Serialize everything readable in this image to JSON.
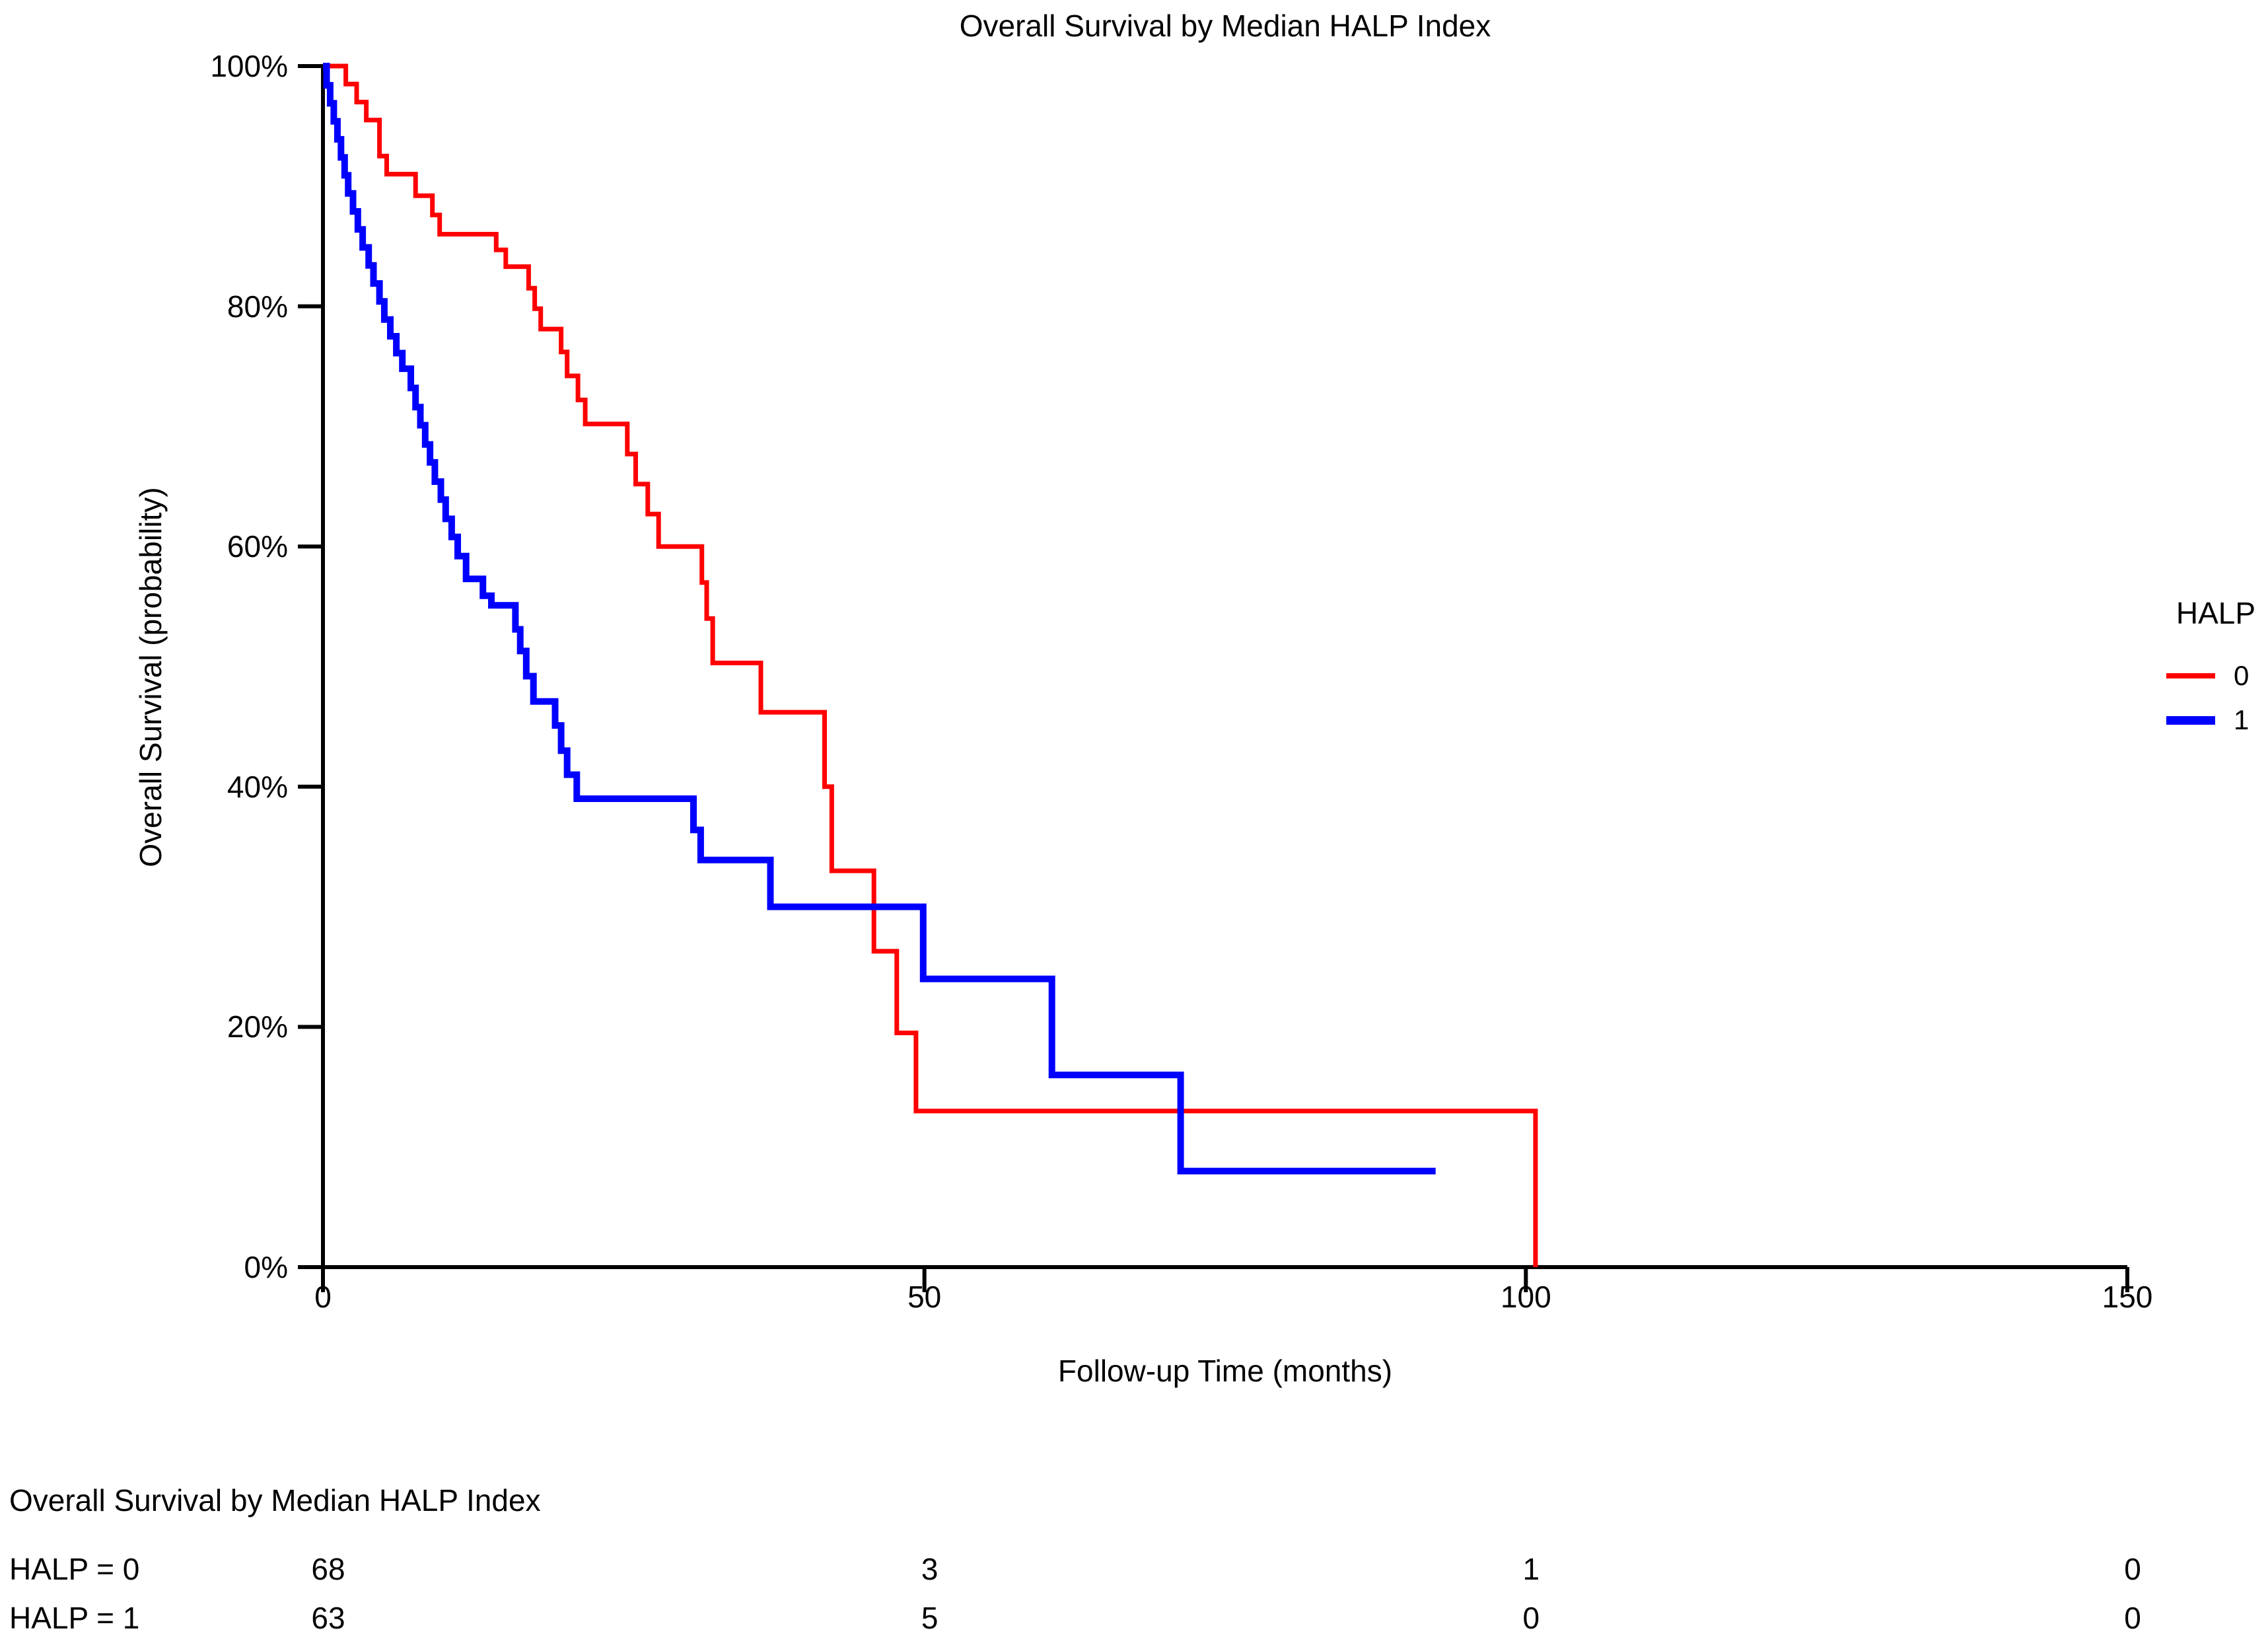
{
  "page": {
    "background": "#ffffff",
    "axis_color": "#000000"
  },
  "chart_data": {
    "type": "line",
    "subtype": "kaplan-meier-step-curves",
    "title": "Overall Survival by Median HALP Index",
    "xlabel": "Follow-up Time (months)",
    "ylabel": "Overall Survival (probability)",
    "xlim": [
      0,
      150
    ],
    "ylim": [
      0,
      100
    ],
    "grid": false,
    "xticks": [
      {
        "value": 0,
        "label": "0"
      },
      {
        "value": 50,
        "label": "50"
      },
      {
        "value": 100,
        "label": "100"
      },
      {
        "value": 150,
        "label": "150"
      }
    ],
    "yticks": [
      {
        "value": 0,
        "label": "0%"
      },
      {
        "value": 20,
        "label": "20%"
      },
      {
        "value": 40,
        "label": "40%"
      },
      {
        "value": 60,
        "label": "60%"
      },
      {
        "value": 80,
        "label": "80%"
      },
      {
        "value": 100,
        "label": "100%"
      }
    ],
    "legend": {
      "title": "HALP",
      "position": "right",
      "entries": [
        {
          "label": "0",
          "color": "#ff0000"
        },
        {
          "label": "1",
          "color": "#0000ff"
        }
      ]
    },
    "series": [
      {
        "name": "HALP = 0",
        "halp_group": "0",
        "color": "#ff0000",
        "line_width": 7,
        "points": [
          [
            0,
            100
          ],
          [
            1.9,
            98.5
          ],
          [
            2.8,
            97
          ],
          [
            3.6,
            95.5
          ],
          [
            4.7,
            92.5
          ],
          [
            5.3,
            91
          ],
          [
            7.7,
            89.2
          ],
          [
            9.1,
            87.6
          ],
          [
            9.7,
            86
          ],
          [
            14.4,
            84.7
          ],
          [
            15.2,
            83.3
          ],
          [
            17.1,
            81.5
          ],
          [
            17.6,
            79.8
          ],
          [
            18.1,
            78.1
          ],
          [
            19.8,
            76.2
          ],
          [
            20.3,
            74.2
          ],
          [
            21.2,
            72.2
          ],
          [
            21.8,
            70.2
          ],
          [
            25.3,
            67.7
          ],
          [
            26,
            65.2
          ],
          [
            27,
            62.7
          ],
          [
            27.9,
            60
          ],
          [
            31.5,
            57
          ],
          [
            31.9,
            54
          ],
          [
            32.4,
            50.3
          ],
          [
            36.4,
            46.2
          ],
          [
            41.7,
            40
          ],
          [
            42.3,
            33
          ],
          [
            45.8,
            26.3
          ],
          [
            47.7,
            19.5
          ],
          [
            49.3,
            13
          ],
          [
            100.8,
            0
          ]
        ]
      },
      {
        "name": "HALP = 1",
        "halp_group": "1",
        "color": "#0000ff",
        "line_width": 10,
        "points": [
          [
            0,
            100
          ],
          [
            0.3,
            98.4
          ],
          [
            0.6,
            96.9
          ],
          [
            0.9,
            95.4
          ],
          [
            1.2,
            93.9
          ],
          [
            1.5,
            92.4
          ],
          [
            1.8,
            90.9
          ],
          [
            2.1,
            89.4
          ],
          [
            2.5,
            87.9
          ],
          [
            2.9,
            86.4
          ],
          [
            3.3,
            84.9
          ],
          [
            3.8,
            83.4
          ],
          [
            4.2,
            81.9
          ],
          [
            4.7,
            80.4
          ],
          [
            5.1,
            78.9
          ],
          [
            5.6,
            77.5
          ],
          [
            6.1,
            76.1
          ],
          [
            6.6,
            74.8
          ],
          [
            7.3,
            73.2
          ],
          [
            7.7,
            71.6
          ],
          [
            8.1,
            70.1
          ],
          [
            8.5,
            68.5
          ],
          [
            8.9,
            67
          ],
          [
            9.3,
            65.4
          ],
          [
            9.8,
            63.9
          ],
          [
            10.2,
            62.3
          ],
          [
            10.7,
            60.8
          ],
          [
            11.2,
            59.2
          ],
          [
            11.9,
            57.3
          ],
          [
            13.3,
            55.9
          ],
          [
            14,
            55.1
          ],
          [
            16,
            53.1
          ],
          [
            16.4,
            51.3
          ],
          [
            16.9,
            49.2
          ],
          [
            17.5,
            47.1
          ],
          [
            19.3,
            45.1
          ],
          [
            19.8,
            43
          ],
          [
            20.3,
            41
          ],
          [
            21.1,
            39
          ],
          [
            30.8,
            36.4
          ],
          [
            31.4,
            33.9
          ],
          [
            37.2,
            30
          ],
          [
            49.9,
            24
          ],
          [
            60.6,
            16
          ],
          [
            71.3,
            8
          ],
          [
            92.5,
            8
          ]
        ]
      }
    ],
    "risk_table": {
      "title": "Overall Survival by Median HALP Index",
      "time_points": [
        0,
        50,
        100,
        150
      ],
      "rows": [
        {
          "label": "HALP = 0",
          "counts": [
            68,
            3,
            1,
            0
          ]
        },
        {
          "label": "HALP = 1",
          "counts": [
            63,
            5,
            0,
            0
          ]
        }
      ]
    }
  }
}
